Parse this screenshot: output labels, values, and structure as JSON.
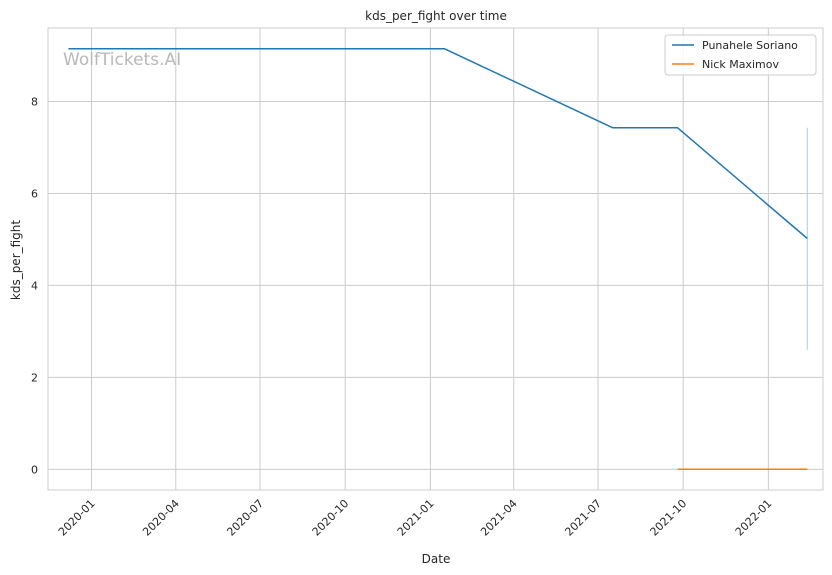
{
  "chart_data": {
    "type": "line",
    "title": "kds_per_fight over time",
    "xlabel": "Date",
    "ylabel": "kds_per_fight",
    "x_type": "date",
    "xlim": [
      "2019-11-15",
      "2022-03-01"
    ],
    "ylim": [
      -0.45,
      9.6
    ],
    "x_ticks": [
      "2020-01-01",
      "2020-04-01",
      "2020-07-01",
      "2020-10-01",
      "2021-01-01",
      "2021-04-01",
      "2021-07-01",
      "2021-10-01",
      "2022-01-01"
    ],
    "x_tick_labels": [
      "2020-01",
      "2020-04",
      "2020-07",
      "2020-10",
      "2021-01",
      "2021-04",
      "2021-07",
      "2021-10",
      "2022-01"
    ],
    "y_ticks": [
      0,
      2,
      4,
      6,
      8
    ],
    "y_tick_labels": [
      "0",
      "2",
      "4",
      "6",
      "8"
    ],
    "grid": true,
    "legend_position": "top-right",
    "watermark": "WolfTickets.AI",
    "series": [
      {
        "name": "Punahele Soriano",
        "color": "#1f77b4",
        "points": [
          {
            "x": "2019-12-07",
            "y": 9.15
          },
          {
            "x": "2021-01-16",
            "y": 9.15
          },
          {
            "x": "2021-07-17",
            "y": 7.43
          },
          {
            "x": "2021-09-25",
            "y": 7.43
          },
          {
            "x": "2022-02-12",
            "y": 5.02
          }
        ]
      },
      {
        "name": "Nick Maximov",
        "color": "#ff7f0e",
        "points": [
          {
            "x": "2021-09-25",
            "y": 0
          },
          {
            "x": "2022-02-12",
            "y": 0
          }
        ]
      }
    ],
    "annotations": [
      {
        "type": "vertical-range",
        "x": "2022-02-12",
        "y_from": 2.6,
        "y_to": 7.43,
        "color": "#a8cfd6"
      }
    ]
  }
}
